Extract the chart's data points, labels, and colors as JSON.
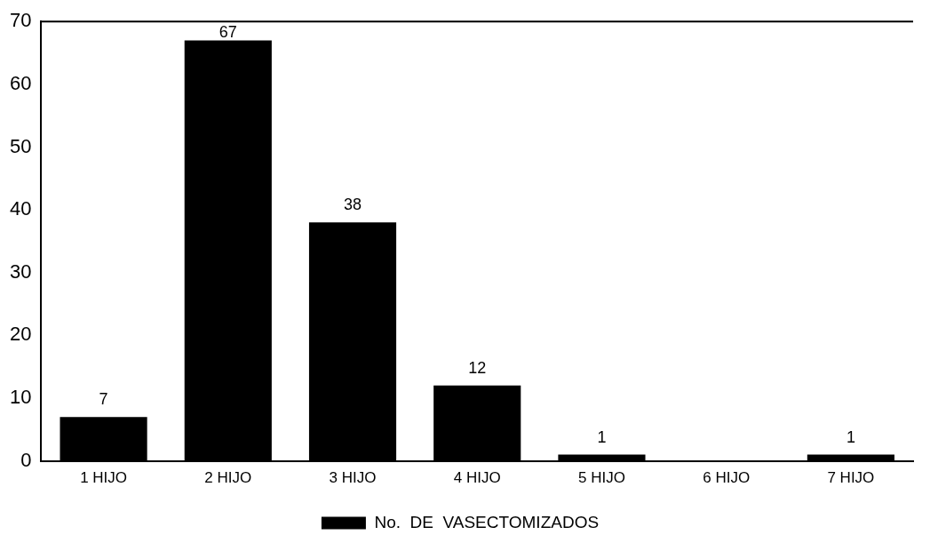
{
  "chart_data": {
    "type": "bar",
    "categories": [
      "1 HIJO",
      "2 HIJO",
      "3 HIJO",
      "4 HIJO",
      "5 HIJO",
      "6 HIJO",
      "7 HIJO"
    ],
    "series": [
      {
        "name": "No.  DE  VASECTOMIZADOS",
        "color": "#000000",
        "values": [
          7,
          67,
          38,
          12,
          1,
          0,
          1
        ],
        "value_labels": [
          "7",
          "67",
          "38",
          "12",
          "1",
          null,
          "1"
        ]
      }
    ],
    "ylim": [
      0,
      70
    ],
    "yticks": [
      0,
      10,
      20,
      30,
      40,
      50,
      60,
      70
    ],
    "grid": false,
    "legend": "bottom"
  }
}
